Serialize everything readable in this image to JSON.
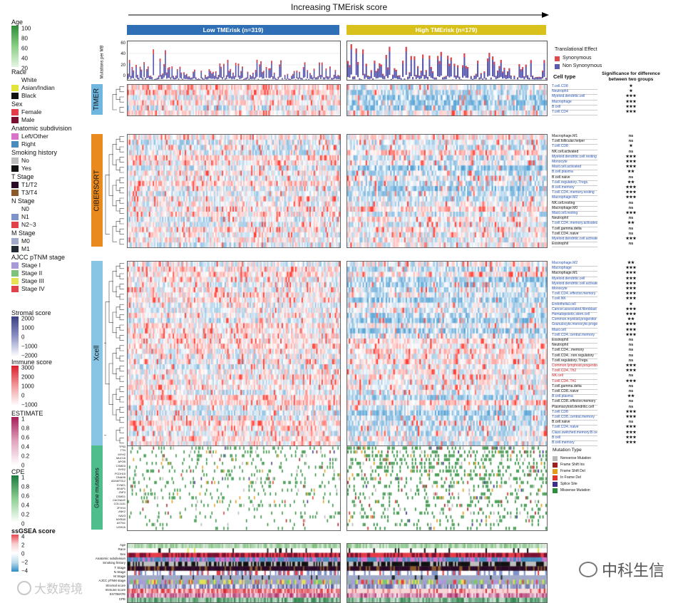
{
  "header": {
    "title": "Increasing TMErisk score",
    "low_group": "Low TMErisk (n=319)",
    "high_group": "High TMErisk (n=179)",
    "low_color": "#2f6fb5",
    "high_color": "#d8c11b"
  },
  "mutation_axis": {
    "label": "Mutations per MB",
    "ticks": [
      "60",
      "40",
      "20",
      "0"
    ]
  },
  "translational_legend": {
    "title": "Translational Effect",
    "items": [
      {
        "label": "Synonymous",
        "color": "#e04a4a"
      },
      {
        "label": "Non Synonymous",
        "color": "#5b5bb0"
      }
    ]
  },
  "cell_type_header": "Cell type",
  "significance_header": "Significance for difference between two groups",
  "sections": [
    {
      "name": "TIMER",
      "color": "#6fb7de",
      "rows": [
        {
          "label": "T.cell.CD8",
          "c": "blue",
          "sig": "★"
        },
        {
          "label": "Neutrophil",
          "c": "blue",
          "sig": "★"
        },
        {
          "label": "Myeloid.dendritic.cell",
          "c": "blue",
          "sig": "★★★"
        },
        {
          "label": "Macrophage",
          "c": "blue",
          "sig": "★★★"
        },
        {
          "label": "B.cell",
          "c": "blue",
          "sig": "★★★"
        },
        {
          "label": "T.cell.CD4",
          "c": "blue",
          "sig": "★★★"
        }
      ]
    },
    {
      "name": "CIBERSORT",
      "color": "#e88a1e",
      "rows": [
        {
          "label": "Macrophage.M1",
          "c": "k",
          "sig": "ns"
        },
        {
          "label": "T.cell.follicular.helper",
          "c": "k",
          "sig": "ns"
        },
        {
          "label": "T.cell.CD8",
          "c": "blue",
          "sig": "★"
        },
        {
          "label": "NK.cell.activated",
          "c": "k",
          "sig": "ns"
        },
        {
          "label": "Myeloid.dendritic.cell.resting",
          "c": "blue",
          "sig": "★★★"
        },
        {
          "label": "Monocyte",
          "c": "blue",
          "sig": "★★★"
        },
        {
          "label": "Mast.cell.activated",
          "c": "blue",
          "sig": "★★★"
        },
        {
          "label": "B.cell.plasma",
          "c": "blue",
          "sig": "★★"
        },
        {
          "label": "B.cell.naive",
          "c": "k",
          "sig": "ns"
        },
        {
          "label": "T.cell.regulatory..Tregs.",
          "c": "blue",
          "sig": "★★"
        },
        {
          "label": "B.cell.memory",
          "c": "blue",
          "sig": "★★★"
        },
        {
          "label": "T.cell.CD4..memory.resting",
          "c": "blue",
          "sig": "★★★"
        },
        {
          "label": "Macrophage.M2",
          "c": "blue",
          "sig": "★★★"
        },
        {
          "label": "NK.cell.resting",
          "c": "k",
          "sig": "ns"
        },
        {
          "label": "Macrophage.M0",
          "c": "k",
          "sig": "ns"
        },
        {
          "label": "Mast.cell.resting",
          "c": "blue",
          "sig": "★★★"
        },
        {
          "label": "Neutrophil",
          "c": "k",
          "sig": "ns"
        },
        {
          "label": "T.cell.CD4..memory.activated",
          "c": "blue",
          "sig": "★★"
        },
        {
          "label": "T.cell.gamma.delta",
          "c": "k",
          "sig": "ns"
        },
        {
          "label": "T.cell.CD4..naive",
          "c": "k",
          "sig": "ns"
        },
        {
          "label": "Myeloid.dendritic.cell.activated",
          "c": "blue",
          "sig": "★★★"
        },
        {
          "label": "Eosinophil",
          "c": "k",
          "sig": "ns"
        }
      ]
    },
    {
      "name": "Xcell",
      "color": "#88c5e5",
      "rows": [
        {
          "label": "Macrophage.M2",
          "c": "blue",
          "sig": "★★"
        },
        {
          "label": "Macrophage",
          "c": "blue",
          "sig": "★★★"
        },
        {
          "label": "Macrophage.M1",
          "c": "k",
          "sig": "★★★"
        },
        {
          "label": "Myeloid.dendritic.cell",
          "c": "blue",
          "sig": "★★★"
        },
        {
          "label": "Myeloid.dendritic.cell.activated",
          "c": "blue",
          "sig": "★★★"
        },
        {
          "label": "Monocyte",
          "c": "blue",
          "sig": "★★★"
        },
        {
          "label": "T.cell.CD4..effector.memory",
          "c": "blue",
          "sig": "★★★"
        },
        {
          "label": "T.cell.NK",
          "c": "blue",
          "sig": "★★★"
        },
        {
          "label": "Endothelial.cell",
          "c": "blue",
          "sig": "★"
        },
        {
          "label": "Cancer.associated.fibroblast",
          "c": "blue",
          "sig": "★★★"
        },
        {
          "label": "Hematopoietic.stem.cell",
          "c": "blue",
          "sig": "★★★"
        },
        {
          "label": "Common.myeloid.progenitor",
          "c": "blue",
          "sig": "★★"
        },
        {
          "label": "Granulocyte.monocyte.progenitor",
          "c": "blue",
          "sig": "★★★"
        },
        {
          "label": "Mast.cell",
          "c": "blue",
          "sig": "★★★"
        },
        {
          "label": "T.cell.CD4..central.memory",
          "c": "blue",
          "sig": "★★★"
        },
        {
          "label": "Eosinophil",
          "c": "k",
          "sig": "ns"
        },
        {
          "label": "Neutrophil",
          "c": "k",
          "sig": "ns"
        },
        {
          "label": "T.cell.CD4...memory",
          "c": "k",
          "sig": "ns"
        },
        {
          "label": "T.cell.CD4...non.regulatory",
          "c": "k",
          "sig": "ns"
        },
        {
          "label": "T.cell.regulatory..Tregs.",
          "c": "k",
          "sig": "ns"
        },
        {
          "label": "Common.lymphoid.progenitor",
          "c": "red",
          "sig": "★★★"
        },
        {
          "label": "T.cell.CD4..Th2",
          "c": "red",
          "sig": "★★★"
        },
        {
          "label": "NK.cell",
          "c": "red",
          "sig": "ns"
        },
        {
          "label": "T.cell.CD4..Th1",
          "c": "red",
          "sig": "★★★"
        },
        {
          "label": "T.cell.gamma.delta",
          "c": "k",
          "sig": "ns"
        },
        {
          "label": "T.cell.CD8..naive",
          "c": "k",
          "sig": "ns"
        },
        {
          "label": "B.cell.plasma",
          "c": "blue",
          "sig": "★★"
        },
        {
          "label": "T.cell.CD8..effector.memory",
          "c": "k",
          "sig": "ns"
        },
        {
          "label": "Plasmacytoid.dendritic.cell",
          "c": "k",
          "sig": "ns"
        },
        {
          "label": "T.cell.CD8",
          "c": "blue",
          "sig": "★★★"
        },
        {
          "label": "T.cell.CD8..central.memory",
          "c": "blue",
          "sig": "★★★"
        },
        {
          "label": "B.cell.naive",
          "c": "k",
          "sig": "ns"
        },
        {
          "label": "T.cell.CD4..naive",
          "c": "blue",
          "sig": "★★★"
        },
        {
          "label": "Class.switched.memory.B.cell",
          "c": "blue",
          "sig": "★★★"
        },
        {
          "label": "B.cell",
          "c": "blue",
          "sig": "★★★"
        },
        {
          "label": "B.cell.memory",
          "c": "blue",
          "sig": "★★★"
        }
      ]
    }
  ],
  "gene_section": {
    "name": "Gene mutations",
    "color": "#4fbd8c",
    "genes": [
      "TP53",
      "TTN",
      "MYH2",
      "MUC16",
      "APOB",
      "CSMD3",
      "RYR2",
      "PCDH15",
      "DNAH6",
      "ADAMTS12",
      "SYNE1",
      "KEAP1",
      "ZNF3",
      "CSMD1",
      "CACNA1E",
      "COL11A1",
      "ZFHX4",
      "ANK2",
      "NAV3",
      "MXRA5",
      "ASTN1",
      "USH2A"
    ]
  },
  "mutation_type_legend": {
    "title": "Mutation Type",
    "items": [
      {
        "label": "Nonsense Mutation",
        "color": "#b9b9b9"
      },
      {
        "label": "Frame Shift Ins",
        "color": "#9e1f1f"
      },
      {
        "label": "Frame Shift Del",
        "color": "#e39b1c"
      },
      {
        "label": "In Frame Del",
        "color": "#e0342a"
      },
      {
        "label": "Splice Site",
        "color": "#3c2d8a"
      },
      {
        "label": "Missense Mutation",
        "color": "#2c8d3b"
      }
    ]
  },
  "annotation_rows": [
    "Age",
    "Race",
    "Sex",
    "Anatomic subdivision",
    "Smoking history",
    "T Stage",
    "N Stage",
    "M Stage",
    "AJCC pTNM stage",
    "Stromal score",
    "Immune score",
    "ESTIMATE",
    "CPE"
  ],
  "left_legend": {
    "age": {
      "title": "Age",
      "ticks": [
        "100",
        "80",
        "60",
        "40",
        "20"
      ]
    },
    "race": {
      "title": "Race",
      "items": [
        {
          "label": "White",
          "color": "#ffffff"
        },
        {
          "label": "Asian/Indian",
          "color": "#e2e43a"
        },
        {
          "label": "Black",
          "color": "#111111"
        }
      ]
    },
    "sex": {
      "title": "Sex",
      "items": [
        {
          "label": "Female",
          "color": "#e33b47"
        },
        {
          "label": "Male",
          "color": "#7a1030"
        }
      ]
    },
    "anatomic": {
      "title": "Anatomic subdivision",
      "items": [
        {
          "label": "Left/Other",
          "color": "#d873c9"
        },
        {
          "label": "Right",
          "color": "#4a8bbd"
        }
      ]
    },
    "smoking": {
      "title": "Smoking history",
      "items": [
        {
          "label": "No",
          "color": "#bdbdbd"
        },
        {
          "label": "Yes",
          "color": "#111111"
        }
      ]
    },
    "tstage": {
      "title": "T Stage",
      "items": [
        {
          "label": "T1/T2",
          "color": "#2b0a28"
        },
        {
          "label": "T3/T4",
          "color": "#8b5a2b"
        }
      ]
    },
    "nstage": {
      "title": "N Stage",
      "items": [
        {
          "label": "N0",
          "color": "#ffffff"
        },
        {
          "label": "N1",
          "color": "#7f93c8"
        },
        {
          "label": "N2~3",
          "color": "#e0424a"
        }
      ]
    },
    "mstage": {
      "title": "M Stage",
      "items": [
        {
          "label": "M0",
          "color": "#a0a9c8"
        },
        {
          "label": "M1",
          "color": "#222a33"
        }
      ]
    },
    "ajcc": {
      "title": "AJCC pTNM stage",
      "items": [
        {
          "label": "Stage I",
          "color": "#a79ad6"
        },
        {
          "label": "Stage II",
          "color": "#7ec27b"
        },
        {
          "label": "Stage III",
          "color": "#e6e055"
        },
        {
          "label": "Stage IV",
          "color": "#e0424a"
        }
      ]
    },
    "stromal": {
      "title": "Stromal score",
      "ticks": [
        "2000",
        "1000",
        "0",
        "−1000",
        "−2000"
      ]
    },
    "immune": {
      "title": "Immune score",
      "ticks": [
        "3000",
        "2000",
        "1000",
        "0",
        "−1000"
      ]
    },
    "estimate": {
      "title": "ESTIMATE",
      "ticks": [
        "1",
        "0.8",
        "0.6",
        "0.4",
        "0.2",
        "0"
      ]
    },
    "cpe": {
      "title": "CPE",
      "ticks": [
        "1",
        "0.8",
        "0.6",
        "0.4",
        "0.2",
        "0"
      ]
    },
    "ssgsea": {
      "title": "ssGSEA score",
      "ticks": [
        "4",
        "2",
        "0",
        "−2",
        "−4"
      ]
    }
  },
  "watermarks": {
    "left": "大数跨境",
    "right": "中科生信"
  }
}
